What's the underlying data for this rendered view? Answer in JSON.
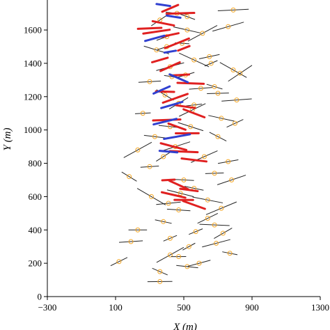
{
  "chart_data": {
    "type": "scatter",
    "title": "",
    "xlabel": "X (m)",
    "ylabel": "Y (m)",
    "xlim": [
      -300,
      1300
    ],
    "ylim": [
      0,
      1780
    ],
    "x_ticks": [
      -300,
      100,
      500,
      900,
      1300
    ],
    "x_tick_labels": [
      "−300",
      "100",
      "500",
      "900",
      "1300"
    ],
    "y_ticks": [
      0,
      200,
      400,
      600,
      800,
      1000,
      1200,
      1400,
      1600
    ],
    "y_tick_labels": [
      "0",
      "200",
      "400",
      "600",
      "800",
      "1000",
      "1200",
      "1400",
      "1600"
    ],
    "grid": false,
    "legend": "none",
    "colors": {
      "circle_marker": "#f5a623",
      "segment_black": "#222222",
      "segment_red": "#e02020",
      "segment_blue": "#3040d0"
    },
    "series": [
      {
        "marker": "open-circle",
        "color": "#f5a623",
        "x": [
          360,
          120,
          190,
          420,
          520,
          690,
          770,
          230,
          380,
          470,
          570,
          310,
          640,
          180,
          410,
          560,
          720,
          300,
          500,
          620,
          760,
          230,
          450,
          680,
          330,
          540,
          800,
          260,
          470,
          720,
          390,
          600,
          810,
          300,
          510,
          680,
          420,
          560,
          790,
          340,
          490,
          650,
          400,
          520,
          760,
          360,
          460,
          610,
          790,
          420,
          550,
          700,
          380,
          480,
          640,
          780,
          420,
          530,
          680,
          360,
          470,
          590,
          730,
          400,
          520,
          660,
          430,
          560,
          700,
          830
        ],
        "y": [
          90,
          210,
          330,
          250,
          180,
          320,
          260,
          400,
          450,
          520,
          390,
          600,
          470,
          720,
          560,
          650,
          530,
          780,
          700,
          840,
          810,
          880,
          900,
          740,
          960,
          1020,
          1040,
          1100,
          1160,
          1070,
          1210,
          1250,
          1180,
          1290,
          1330,
          1260,
          1380,
          1420,
          1360,
          1480,
          1520,
          1440,
          1560,
          1600,
          1620,
          1660,
          1700,
          1580,
          1720,
          1020,
          1120,
          960,
          840,
          620,
          580,
          700,
          350,
          300,
          430,
          150,
          240,
          200,
          380,
          1500,
          1680,
          1400,
          1320,
          1150,
          1220,
          1340
        ]
      },
      {
        "name": "",
        "marker": "segment",
        "color": "#e02020",
        "x": [
          300,
          340,
          380,
          420,
          460,
          500,
          360,
          420,
          480,
          540,
          390,
          450,
          510,
          560,
          400,
          460,
          520,
          440,
          500,
          560,
          410,
          470,
          530,
          440,
          500,
          560,
          420,
          480
        ],
        "y": [
          1610,
          1590,
          1640,
          1570,
          1520,
          1490,
          1420,
          1380,
          1330,
          1280,
          1230,
          1190,
          1140,
          1100,
          1060,
          1020,
          980,
          900,
          870,
          820,
          700,
          670,
          640,
          610,
          580,
          550,
          1730,
          1700
        ]
      },
      {
        "name": "",
        "marker": "segment",
        "color": "#3040d0",
        "x": [
          380,
          440,
          330,
          420,
          470,
          370,
          430,
          390,
          460,
          410
        ],
        "y": [
          1750,
          1680,
          1550,
          1470,
          1310,
          1240,
          1150,
          1050,
          960,
          870
        ]
      }
    ]
  }
}
